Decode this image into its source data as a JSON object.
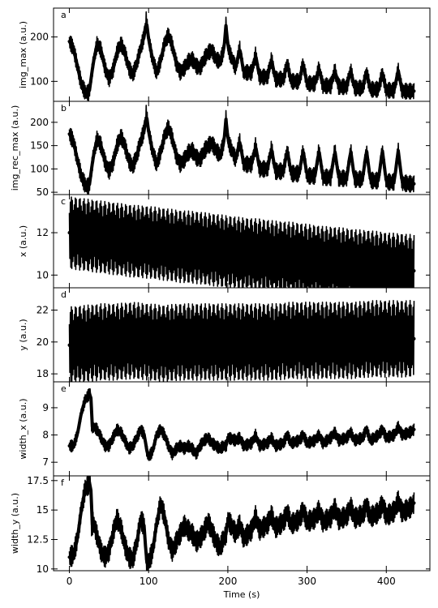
{
  "chart_data": [
    {
      "type": "line",
      "panel": "a",
      "ylabel": "img_max (a.u.)",
      "ylim": [
        55,
        265
      ],
      "yticks": [
        100,
        200
      ],
      "xlabel": "",
      "xlim": [
        -20,
        455
      ],
      "series": [
        {
          "x": [
            0,
            5,
            10,
            15,
            20,
            25,
            30,
            35,
            40,
            45,
            50,
            55,
            60,
            65,
            70,
            75,
            80,
            85,
            90,
            95,
            97,
            100,
            105,
            110,
            115,
            120,
            125,
            130,
            135,
            140,
            145,
            150,
            155,
            160,
            165,
            170,
            175,
            180,
            185,
            190,
            195,
            198,
            200,
            210,
            215,
            220,
            230,
            235,
            240,
            250,
            255,
            260,
            270,
            275,
            280,
            290,
            295,
            300,
            310,
            315,
            320,
            330,
            335,
            340,
            350,
            355,
            360,
            370,
            375,
            380,
            390,
            395,
            400,
            410,
            415,
            420,
            430,
            435
          ],
          "y": [
            190,
            175,
            135,
            95,
            75,
            75,
            140,
            185,
            170,
            130,
            105,
            125,
            165,
            185,
            165,
            130,
            115,
            140,
            175,
            205,
            240,
            195,
            150,
            120,
            145,
            185,
            205,
            180,
            140,
            120,
            130,
            145,
            150,
            135,
            130,
            150,
            165,
            170,
            150,
            145,
            170,
            235,
            175,
            130,
            175,
            120,
            120,
            160,
            110,
            110,
            150,
            105,
            105,
            140,
            100,
            100,
            140,
            95,
            95,
            130,
            90,
            90,
            125,
            88,
            88,
            125,
            85,
            85,
            120,
            82,
            82,
            118,
            80,
            80,
            125,
            78,
            78,
            78
          ],
          "band": 18
        }
      ]
    },
    {
      "type": "line",
      "panel": "b",
      "ylabel": "img_rec_max (a.u.)",
      "ylim": [
        45,
        245
      ],
      "yticks": [
        50,
        100,
        150,
        200
      ],
      "xlabel": "",
      "xlim": [
        -20,
        455
      ],
      "series": [
        {
          "x": [
            0,
            5,
            10,
            15,
            20,
            25,
            30,
            35,
            40,
            45,
            50,
            55,
            60,
            65,
            70,
            75,
            80,
            85,
            90,
            95,
            97,
            100,
            105,
            110,
            115,
            120,
            125,
            130,
            135,
            140,
            145,
            150,
            155,
            160,
            165,
            170,
            175,
            180,
            185,
            190,
            195,
            198,
            200,
            210,
            215,
            220,
            230,
            235,
            240,
            250,
            255,
            260,
            270,
            275,
            280,
            290,
            295,
            300,
            310,
            315,
            320,
            330,
            335,
            340,
            350,
            355,
            360,
            370,
            375,
            380,
            390,
            395,
            400,
            410,
            415,
            420,
            430,
            435
          ],
          "y": [
            175,
            160,
            120,
            85,
            65,
            62,
            125,
            165,
            150,
            115,
            95,
            112,
            150,
            170,
            150,
            118,
            105,
            128,
            160,
            185,
            220,
            180,
            138,
            110,
            135,
            170,
            190,
            165,
            128,
            110,
            120,
            135,
            140,
            125,
            120,
            138,
            150,
            155,
            140,
            130,
            155,
            215,
            160,
            120,
            160,
            110,
            110,
            150,
            100,
            100,
            145,
            95,
            95,
            140,
            90,
            90,
            140,
            85,
            85,
            140,
            82,
            82,
            140,
            80,
            80,
            140,
            78,
            78,
            140,
            75,
            75,
            140,
            72,
            72,
            140,
            70,
            68,
            68
          ],
          "band": 18
        }
      ]
    },
    {
      "type": "line",
      "panel": "c",
      "ylabel": "x (a.u.)",
      "ylim": [
        9.4,
        13.8
      ],
      "yticks": [
        10,
        12
      ],
      "xlabel": "",
      "xlim": [
        -20,
        455
      ],
      "series": [
        {
          "x": [
            0,
            20,
            40,
            60,
            80,
            100,
            120,
            140,
            160,
            180,
            200,
            220,
            240,
            260,
            280,
            300,
            320,
            340,
            360,
            380,
            400,
            420,
            435
          ],
          "y": [
            12.0,
            11.9,
            11.8,
            11.7,
            11.6,
            11.55,
            11.45,
            11.35,
            11.3,
            11.2,
            11.1,
            11.0,
            10.95,
            10.85,
            10.8,
            10.7,
            10.6,
            10.55,
            10.45,
            10.4,
            10.3,
            10.25,
            10.2
          ],
          "band": 1.7
        }
      ]
    },
    {
      "type": "line",
      "panel": "d",
      "ylabel": "y (a.u.)",
      "ylim": [
        17.5,
        23.4
      ],
      "yticks": [
        18,
        20,
        22
      ],
      "xlabel": "",
      "xlim": [
        -20,
        455
      ],
      "series": [
        {
          "x": [
            0,
            20,
            40,
            60,
            80,
            100,
            120,
            140,
            160,
            180,
            200,
            220,
            240,
            260,
            280,
            300,
            320,
            340,
            360,
            380,
            400,
            420,
            435
          ],
          "y": [
            19.8,
            19.9,
            20.0,
            20.0,
            20.1,
            20.0,
            19.9,
            20.0,
            20.0,
            20.0,
            20.0,
            20.0,
            20.0,
            20.0,
            20.1,
            20.1,
            20.1,
            20.1,
            20.1,
            20.2,
            20.2,
            20.2,
            20.2
          ],
          "band": 2.4
        }
      ]
    },
    {
      "type": "line",
      "panel": "e",
      "ylabel": "width_x (a.u.)",
      "ylim": [
        6.5,
        9.95
      ],
      "yticks": [
        7,
        8,
        9
      ],
      "xlabel": "",
      "xlim": [
        -20,
        455
      ],
      "series": [
        {
          "x": [
            0,
            5,
            10,
            15,
            20,
            25,
            27,
            28,
            30,
            35,
            40,
            45,
            50,
            55,
            60,
            65,
            70,
            75,
            80,
            85,
            90,
            95,
            97,
            100,
            105,
            110,
            115,
            120,
            125,
            130,
            135,
            140,
            145,
            150,
            155,
            160,
            165,
            170,
            175,
            180,
            185,
            190,
            195,
            198,
            200,
            210,
            215,
            220,
            230,
            235,
            240,
            250,
            255,
            260,
            270,
            275,
            280,
            290,
            295,
            300,
            310,
            315,
            320,
            330,
            335,
            340,
            350,
            355,
            360,
            370,
            375,
            380,
            390,
            395,
            400,
            410,
            415,
            420,
            430,
            435
          ],
          "y": [
            7.6,
            7.6,
            8.0,
            8.8,
            9.3,
            9.5,
            9.6,
            8.3,
            8.3,
            8.2,
            7.9,
            7.6,
            7.6,
            7.9,
            8.2,
            8.1,
            7.8,
            7.5,
            7.6,
            7.9,
            8.2,
            8.0,
            7.5,
            7.2,
            7.4,
            8.0,
            8.2,
            8.0,
            7.6,
            7.3,
            7.5,
            7.6,
            7.5,
            7.6,
            7.5,
            7.3,
            7.6,
            7.8,
            7.9,
            7.7,
            7.6,
            7.5,
            7.6,
            7.6,
            7.9,
            7.8,
            7.9,
            7.6,
            7.7,
            8.0,
            7.6,
            7.7,
            7.9,
            7.6,
            7.7,
            8.0,
            7.7,
            7.8,
            8.0,
            7.7,
            7.8,
            8.0,
            7.7,
            7.9,
            8.1,
            7.8,
            7.9,
            8.1,
            7.8,
            7.9,
            8.2,
            7.8,
            8.0,
            8.2,
            7.9,
            8.0,
            8.3,
            8.0,
            8.1,
            8.2
          ],
          "band": 0.22
        }
      ]
    },
    {
      "type": "line",
      "panel": "f",
      "ylabel": "width_y (a.u.)",
      "ylim": [
        9.85,
        17.9
      ],
      "yticks": [
        10.0,
        12.5,
        15.0,
        17.5
      ],
      "xlabel": "Time (s)",
      "xlim": [
        -20,
        455
      ],
      "xticks": [
        0,
        100,
        200,
        300,
        400
      ],
      "series": [
        {
          "x": [
            0,
            5,
            10,
            15,
            20,
            25,
            27,
            28,
            30,
            35,
            40,
            45,
            50,
            55,
            60,
            65,
            70,
            75,
            80,
            85,
            90,
            95,
            97,
            100,
            105,
            110,
            115,
            120,
            125,
            130,
            135,
            140,
            145,
            150,
            155,
            160,
            165,
            170,
            175,
            180,
            185,
            190,
            195,
            198,
            200,
            210,
            215,
            220,
            230,
            235,
            240,
            250,
            255,
            260,
            270,
            275,
            280,
            290,
            295,
            300,
            310,
            315,
            320,
            330,
            335,
            340,
            350,
            355,
            360,
            370,
            375,
            380,
            390,
            395,
            400,
            410,
            415,
            420,
            430,
            435
          ],
          "y": [
            11.0,
            11.2,
            12.5,
            15.0,
            16.8,
            17.3,
            17.4,
            13.5,
            14.0,
            12.8,
            11.5,
            11.0,
            11.5,
            13.0,
            14.3,
            13.5,
            12.0,
            11.0,
            10.8,
            12.2,
            14.2,
            13.6,
            10.5,
            10.6,
            11.5,
            13.8,
            15.5,
            14.5,
            12.5,
            11.5,
            12.3,
            13.0,
            13.7,
            13.3,
            13.0,
            12.3,
            12.6,
            13.2,
            14.0,
            13.2,
            12.3,
            11.8,
            12.6,
            13.0,
            14.2,
            13.0,
            13.8,
            12.6,
            13.3,
            14.5,
            13.3,
            13.8,
            14.6,
            13.5,
            14.0,
            14.8,
            13.8,
            14.2,
            15.0,
            14.0,
            14.3,
            15.0,
            14.0,
            14.4,
            15.2,
            14.2,
            14.5,
            15.3,
            14.3,
            14.6,
            15.4,
            14.4,
            14.8,
            15.5,
            14.5,
            14.9,
            15.8,
            14.8,
            15.2,
            15.6
          ],
          "band": 0.9
        }
      ]
    }
  ]
}
